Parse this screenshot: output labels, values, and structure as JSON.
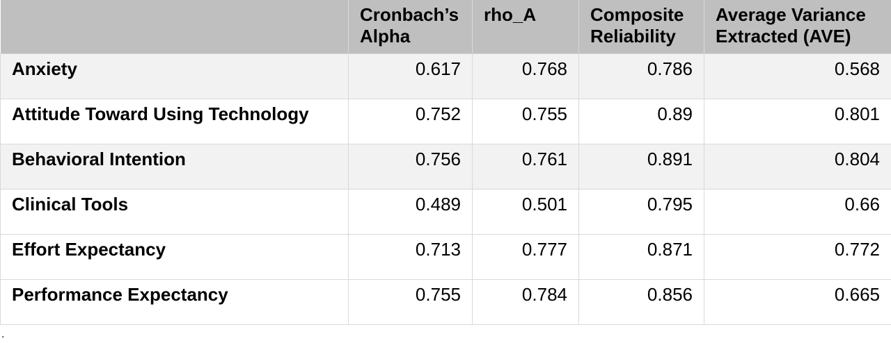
{
  "table": {
    "headers": [
      "",
      "Cronbach’s Alpha",
      "rho_A",
      "Composite Reliability",
      "Average Variance Extracted (AVE)"
    ],
    "rows": [
      {
        "construct": "Anxiety",
        "values": [
          "0.617",
          "0.768",
          "0.786",
          "0.568"
        ]
      },
      {
        "construct": "Attitude Toward Using Technology",
        "values": [
          "0.752",
          "0.755",
          "0.89",
          "0.801"
        ]
      },
      {
        "construct": "Behavioral Intention",
        "values": [
          "0.756",
          "0.761",
          "0.891",
          "0.804"
        ]
      },
      {
        "construct": "Clinical Tools",
        "values": [
          "0.489",
          "0.501",
          "0.795",
          "0.66"
        ]
      },
      {
        "construct": "Effort Expectancy",
        "values": [
          "0.713",
          "0.777",
          "0.871",
          "0.772"
        ]
      },
      {
        "construct": "Performance Expectancy",
        "values": [
          "0.755",
          "0.784",
          "0.856",
          "0.665"
        ]
      }
    ]
  },
  "footnote": ".",
  "colors": {
    "header_bg": "#bfbfbf",
    "shaded_row_bg": "#f2f2f2",
    "border": "#d9d9d9"
  }
}
